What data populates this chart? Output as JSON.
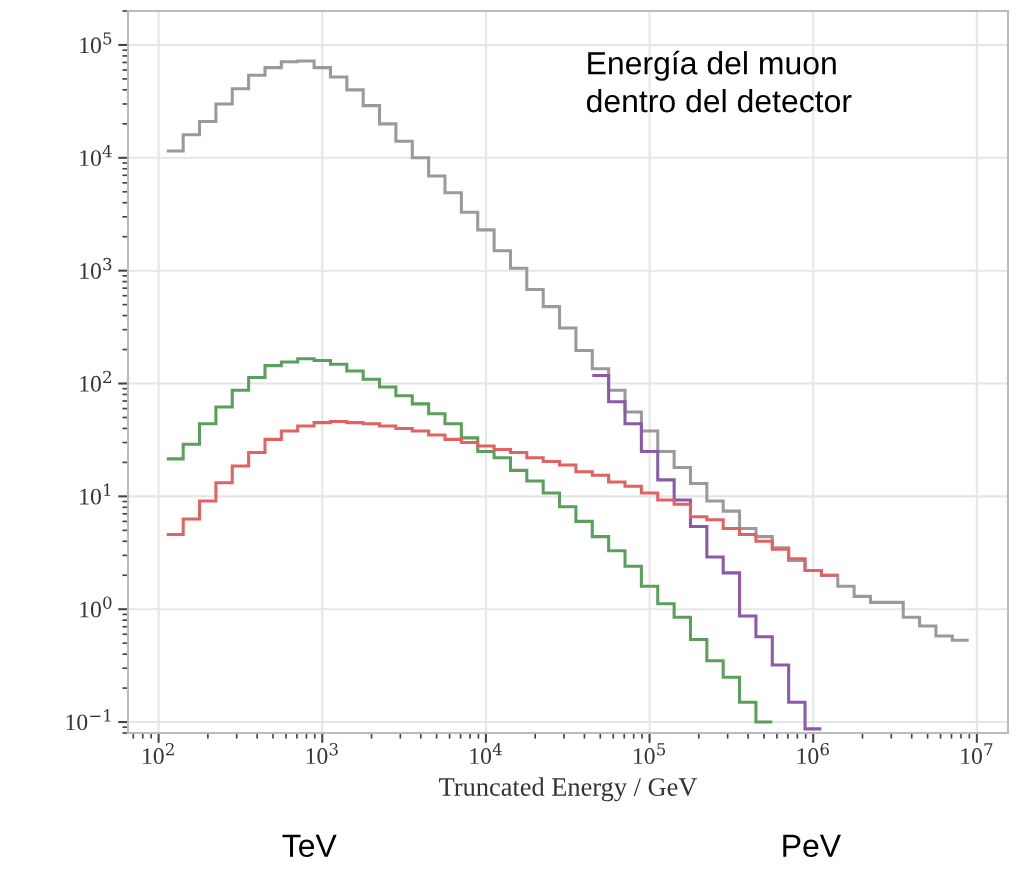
{
  "chart_data": {
    "type": "histogram",
    "xlabel": "Truncated Energy / GeV",
    "annotations": [
      "Energía del muon\ndentro del detector",
      "TeV",
      "PeV"
    ],
    "bins": [
      112.2,
      141.3,
      177.8,
      223.9,
      281.8,
      354.8,
      446.7,
      562.3,
      707.9,
      891.3,
      1122,
      1413,
      1778,
      2239,
      2818,
      3548,
      4467,
      5623,
      7079,
      8913,
      11220,
      14130,
      17780,
      22390,
      28180,
      35480,
      44670,
      56230,
      70790,
      89130,
      112200,
      141300,
      177800,
      223900,
      281800,
      354800,
      446700,
      562300,
      707900,
      891300,
      1122000,
      1413000,
      1778000,
      2239000,
      2818000,
      3548000,
      4467000,
      5623000,
      7079000,
      8913000
    ],
    "series": [
      {
        "color": "#9a9a9a",
        "values": [
          11500,
          16000,
          21000,
          30000,
          41000,
          54000,
          63000,
          71000,
          72000,
          63000,
          52000,
          40000,
          29000,
          20000,
          14000,
          10000,
          6900,
          4900,
          3300,
          2300,
          1500,
          1050,
          680,
          480,
          310,
          196,
          135,
          87,
          56,
          38,
          25,
          18,
          13,
          9.1,
          7.4,
          5.2,
          4.4,
          3.5,
          2.7,
          2.2,
          2.0,
          1.6,
          1.3,
          1.15,
          1.15,
          0.85,
          0.71,
          0.58,
          0.53
        ]
      },
      {
        "color": "#8a5aa8",
        "bins": [
          44670,
          56230,
          70790,
          89130,
          112200,
          141300,
          177800,
          223900,
          281800,
          354800,
          446700,
          562300,
          707900,
          891300,
          1122000
        ],
        "values": [
          118,
          69,
          44,
          25,
          14,
          9.3,
          5.4,
          2.9,
          2.1,
          0.87,
          0.57,
          0.32,
          0.15,
          0.087
        ]
      },
      {
        "color": "#5c9e5c",
        "bins": [
          112.2,
          141.3,
          177.8,
          223.9,
          281.8,
          354.8,
          446.7,
          562.3,
          707.9,
          891.3,
          1122,
          1413,
          1778,
          2239,
          2818,
          3548,
          4467,
          5623,
          7079,
          8913,
          11220,
          14130,
          17780,
          22390,
          28180,
          35480,
          44670,
          56230,
          70790,
          89130,
          112200,
          141300,
          177800,
          223900,
          281800,
          354800,
          446700,
          562300
        ],
        "values": [
          21.5,
          29,
          44,
          62,
          87,
          113,
          144,
          155,
          166,
          160,
          148,
          129,
          109,
          93,
          78,
          66,
          54,
          44,
          33,
          25,
          22,
          17,
          13.7,
          10.7,
          8.1,
          6.0,
          4.4,
          3.3,
          2.4,
          1.6,
          1.12,
          0.85,
          0.54,
          0.35,
          0.25,
          0.15,
          0.1
        ]
      },
      {
        "color": "#e06262",
        "bins": [
          112.2,
          141.3,
          177.8,
          223.9,
          281.8,
          354.8,
          446.7,
          562.3,
          707.9,
          891.3,
          1122,
          1413,
          1778,
          2239,
          2818,
          3548,
          4467,
          5623,
          7079,
          8913,
          11220,
          14130,
          17780,
          22390,
          28180,
          35480,
          44670,
          56230,
          70790,
          89130,
          112200,
          141300,
          177800,
          223900,
          281800,
          354800,
          446700,
          562300,
          707900,
          891300,
          1122000,
          1413000
        ],
        "values": [
          4.6,
          6.3,
          9.1,
          13.2,
          18.6,
          24.5,
          32,
          38,
          42,
          45,
          46,
          45,
          44,
          42,
          40,
          38,
          35,
          32,
          30,
          28,
          26,
          24.5,
          22,
          20.4,
          19,
          16.5,
          15.4,
          13.4,
          12.3,
          10.7,
          9.3,
          8.5,
          6.6,
          6.2,
          5.2,
          4.6,
          4.0,
          3.4,
          2.8,
          2.2,
          2.0
        ]
      }
    ],
    "log": "xy",
    "xlim": [
      65,
      15500000
    ],
    "ylim": [
      0.08,
      200000
    ],
    "xticks": [
      {
        "value": 100,
        "label": "10$^{2}$"
      },
      {
        "value": 1000,
        "label": "10$^{3}$"
      },
      {
        "value": 10000,
        "label": "10$^{4}$"
      },
      {
        "value": 100000,
        "label": "10$^{5}$"
      },
      {
        "value": 1000000,
        "label": "10$^{6}$"
      },
      {
        "value": 10000000,
        "label": "10$^{7}$"
      }
    ],
    "yticks": [
      {
        "value": 0.1,
        "label": "10$^{−1}$"
      },
      {
        "value": 1,
        "label": "10$^{0}$"
      },
      {
        "value": 10,
        "label": "10$^{1}$"
      },
      {
        "value": 100,
        "label": "10$^{2}$"
      },
      {
        "value": 1000,
        "label": "10$^{3}$"
      },
      {
        "value": 10000,
        "label": "10$^{4}$"
      },
      {
        "value": 100000,
        "label": "10$^{5}$"
      }
    ],
    "grid": true
  }
}
